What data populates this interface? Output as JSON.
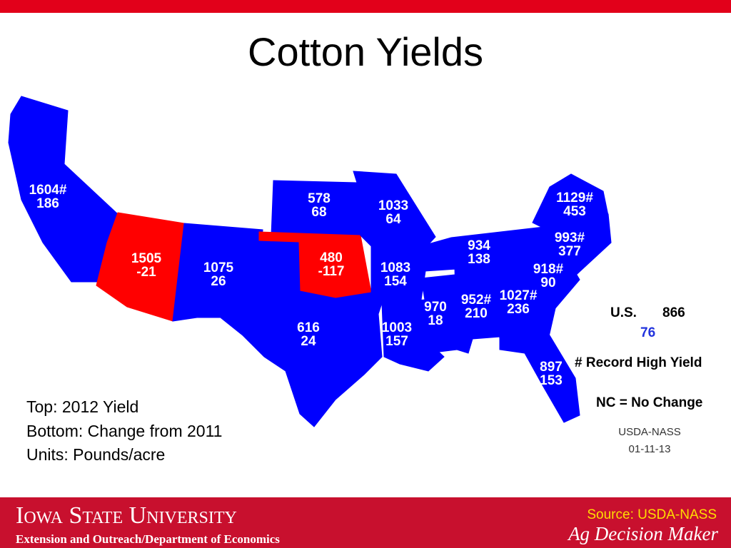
{
  "title": "Cotton Yields",
  "states": [
    {
      "top": "1604#",
      "bottom": "186",
      "color": "#0000ff"
    },
    {
      "top": "1505",
      "bottom": "-21",
      "color": "#ff0000"
    },
    {
      "top": "1075",
      "bottom": "26",
      "color": "#0000ff"
    },
    {
      "top": "578",
      "bottom": "68",
      "color": "#0000ff"
    },
    {
      "top": "480",
      "bottom": "-117",
      "color": "#ff0000"
    },
    {
      "top": "616",
      "bottom": "24",
      "color": "#0000ff"
    },
    {
      "top": "1033",
      "bottom": "64",
      "color": "#0000ff"
    },
    {
      "top": "1083",
      "bottom": "154",
      "color": "#0000ff"
    },
    {
      "top": "1003",
      "bottom": "157",
      "color": "#0000ff"
    },
    {
      "top": "970",
      "bottom": "18",
      "color": "#0000ff"
    },
    {
      "top": "952#",
      "bottom": "210",
      "color": "#0000ff"
    },
    {
      "top": "1027#",
      "bottom": "236",
      "color": "#0000ff"
    },
    {
      "top": "934",
      "bottom": "138",
      "color": "#0000ff"
    },
    {
      "top": "1129#",
      "bottom": "453",
      "color": "#0000ff"
    },
    {
      "top": "993#",
      "bottom": "377",
      "color": "#0000ff"
    },
    {
      "top": "918#",
      "bottom": "90",
      "color": "#0000ff"
    },
    {
      "top": "897",
      "bottom": "153",
      "color": "#0000ff"
    }
  ],
  "legend": {
    "us_label": "U.S.",
    "us_yield": "866",
    "us_change": "76",
    "record": "# Record High Yield",
    "no_change": "NC = No Change",
    "source": "USDA-NASS",
    "date": "01-11-13"
  },
  "notes": [
    "Top: 2012 Yield",
    "Bottom: Change from 2011",
    "Units: Pounds/acre"
  ],
  "footer": {
    "university": "Iowa State University",
    "department": "Extension and Outreach/Department of Economics",
    "source": "Source: USDA-NASS",
    "brand": "Ag Decision Maker"
  }
}
